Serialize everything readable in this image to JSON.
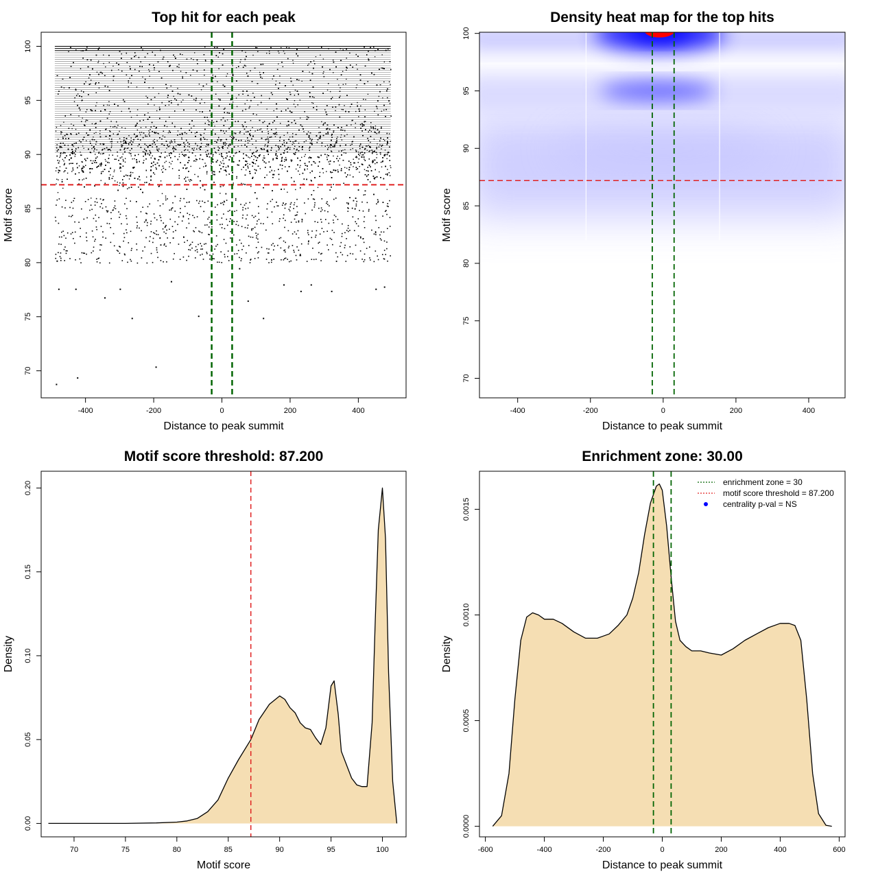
{
  "chart_data": [
    {
      "type": "scatter",
      "title": "Top hit for each peak",
      "xlabel": "Distance to peak summit",
      "ylabel": "Motif score",
      "xlim": [
        -530,
        540
      ],
      "ylim": [
        67.5,
        101.3
      ],
      "xticks": [
        -400,
        -200,
        0,
        200,
        400
      ],
      "yticks": [
        70,
        75,
        80,
        85,
        90,
        95,
        100
      ],
      "xtick_labels": [
        "-400",
        "-200",
        "0",
        "200",
        "400"
      ],
      "ytick_labels": [
        "70",
        "75",
        "80",
        "85",
        "90",
        "95",
        "100"
      ],
      "x_range_of_points": [
        -490,
        495
      ],
      "dense_score_band": [
        84,
        100
      ],
      "outlier_points": [
        {
          "x": -487,
          "y": 68.8
        },
        {
          "x": -425,
          "y": 69.4
        },
        {
          "x": -195,
          "y": 70.4
        },
        {
          "x": -265,
          "y": 74.9
        },
        {
          "x": -70,
          "y": 75.1
        },
        {
          "x": 120,
          "y": 74.9
        },
        {
          "x": -345,
          "y": 76.8
        },
        {
          "x": -480,
          "y": 77.6
        },
        {
          "x": -430,
          "y": 77.6
        },
        {
          "x": -300,
          "y": 77.6
        },
        {
          "x": -150,
          "y": 78.3
        },
        {
          "x": 75,
          "y": 76.5
        },
        {
          "x": 320,
          "y": 77.4
        },
        {
          "x": 260,
          "y": 78.0
        },
        {
          "x": 450,
          "y": 77.6
        },
        {
          "x": 475,
          "y": 77.8
        },
        {
          "x": -485,
          "y": 80.2
        },
        {
          "x": 50,
          "y": 79.5
        },
        {
          "x": 230,
          "y": 77.4
        },
        {
          "x": 180,
          "y": 78.0
        }
      ],
      "threshold_line": {
        "axis": "y",
        "value": 87.2,
        "color": "#e02020",
        "style": "dashed"
      },
      "enrichment_lines": {
        "axis": "x",
        "values": [
          -30,
          30
        ],
        "color": "#006400",
        "style": "dashed"
      }
    },
    {
      "type": "heatmap",
      "title": "Density heat map for the top hits",
      "xlabel": "Distance to peak summit",
      "ylabel": "Motif score",
      "xlim": [
        -505,
        500
      ],
      "ylim": [
        68.3,
        100.1
      ],
      "xticks": [
        -400,
        -200,
        0,
        200,
        400
      ],
      "yticks": [
        70,
        75,
        80,
        85,
        90,
        95,
        100
      ],
      "xtick_labels": [
        "-400",
        "-200",
        "0",
        "200",
        "400"
      ],
      "ytick_labels": [
        "70",
        "75",
        "80",
        "85",
        "90",
        "95",
        "100"
      ],
      "colors": {
        "low": "#ffffff",
        "mid": "#0000ff",
        "high": "#ff0000"
      },
      "density_hotspots": [
        {
          "x": -10,
          "y": 100,
          "level": "high"
        },
        {
          "x": -15,
          "y": 95,
          "level": "mid"
        },
        {
          "x": 0,
          "y": 90,
          "level": "low"
        }
      ],
      "threshold_line": {
        "axis": "y",
        "value": 87.2,
        "color": "#e02020",
        "style": "dashed"
      },
      "enrichment_lines": {
        "axis": "x",
        "values": [
          -30,
          30
        ],
        "color": "#006400",
        "style": "dashed"
      }
    },
    {
      "type": "area",
      "title": "Motif score threshold: 87.200",
      "xlabel": "Motif score",
      "ylabel": "Density",
      "xlim": [
        66.8,
        102.3
      ],
      "ylim": [
        -0.008,
        0.21
      ],
      "xticks": [
        70,
        75,
        80,
        85,
        90,
        95,
        100
      ],
      "yticks": [
        0.0,
        0.05,
        0.1,
        0.15,
        0.2
      ],
      "xtick_labels": [
        "70",
        "75",
        "80",
        "85",
        "90",
        "95",
        "100"
      ],
      "ytick_labels": [
        "0.00",
        "0.05",
        "0.10",
        "0.15",
        "0.20"
      ],
      "fill_color": "#f5deb3",
      "x": [
        67.5,
        75,
        78,
        80,
        81,
        82,
        83,
        84,
        85,
        86,
        87.2,
        88,
        89,
        90,
        90.5,
        91,
        91.5,
        92,
        92.5,
        93,
        93.5,
        94,
        94.5,
        95,
        95.3,
        95.7,
        96,
        96.5,
        97,
        97.5,
        98,
        98.5,
        99,
        99.3,
        99.6,
        100,
        100.3,
        100.6,
        101,
        101.4
      ],
      "y": [
        0.0,
        0.0,
        0.0003,
        0.0008,
        0.0015,
        0.003,
        0.007,
        0.014,
        0.027,
        0.038,
        0.05,
        0.062,
        0.071,
        0.076,
        0.074,
        0.069,
        0.066,
        0.06,
        0.057,
        0.056,
        0.051,
        0.047,
        0.057,
        0.082,
        0.085,
        0.065,
        0.043,
        0.035,
        0.027,
        0.023,
        0.022,
        0.022,
        0.06,
        0.12,
        0.175,
        0.2,
        0.17,
        0.09,
        0.025,
        0.0
      ],
      "threshold_line": {
        "axis": "x",
        "value": 87.2,
        "color": "#e02020",
        "style": "dashed"
      }
    },
    {
      "type": "area",
      "title": "Enrichment zone: 30.00",
      "xlabel": "Distance to peak summit",
      "ylabel": "Density",
      "xlim": [
        -620,
        620
      ],
      "ylim": [
        -5e-05,
        0.00168
      ],
      "xticks": [
        -600,
        -400,
        -200,
        0,
        200,
        400,
        600
      ],
      "yticks": [
        0.0,
        0.0005,
        0.001,
        0.0015
      ],
      "xtick_labels": [
        "-600",
        "-400",
        "-200",
        "0",
        "200",
        "400",
        "600"
      ],
      "ytick_labels": [
        "0.0000",
        "0.0005",
        "0.0010",
        "0.0015"
      ],
      "fill_color": "#f5deb3",
      "x": [
        -575,
        -545,
        -520,
        -500,
        -480,
        -460,
        -440,
        -420,
        -400,
        -370,
        -340,
        -300,
        -260,
        -220,
        -200,
        -180,
        -150,
        -120,
        -100,
        -80,
        -60,
        -40,
        -20,
        -10,
        0,
        15,
        30,
        45,
        60,
        80,
        100,
        130,
        160,
        200,
        240,
        280,
        320,
        360,
        400,
        430,
        450,
        470,
        490,
        510,
        530,
        555,
        575
      ],
      "y": [
        0.0,
        5e-05,
        0.00025,
        0.0006,
        0.00088,
        0.00099,
        0.00101,
        0.001,
        0.00098,
        0.00098,
        0.00096,
        0.00092,
        0.00089,
        0.00089,
        0.0009,
        0.00091,
        0.00095,
        0.001,
        0.00108,
        0.0012,
        0.00138,
        0.00153,
        0.00161,
        0.00162,
        0.00159,
        0.00142,
        0.00118,
        0.00097,
        0.00088,
        0.00085,
        0.00083,
        0.00083,
        0.00082,
        0.00081,
        0.00084,
        0.00088,
        0.00091,
        0.00094,
        0.00096,
        0.00096,
        0.00095,
        0.00088,
        0.0006,
        0.00025,
        6e-05,
        5e-06,
        0.0
      ],
      "enrichment_lines": {
        "axis": "x",
        "values": [
          -30,
          30
        ],
        "color": "#006400",
        "style": "dashed"
      },
      "legend": {
        "placement": "top-right",
        "entries": [
          {
            "label": "enrichment zone = 30",
            "color": "#006400",
            "marker": "dotted-line"
          },
          {
            "label": "motif score threshold = 87.200",
            "color": "#e02020",
            "marker": "dotted-line"
          },
          {
            "label": "centrality p-val = NS",
            "color": "#0000ff",
            "marker": "point"
          }
        ]
      }
    }
  ]
}
